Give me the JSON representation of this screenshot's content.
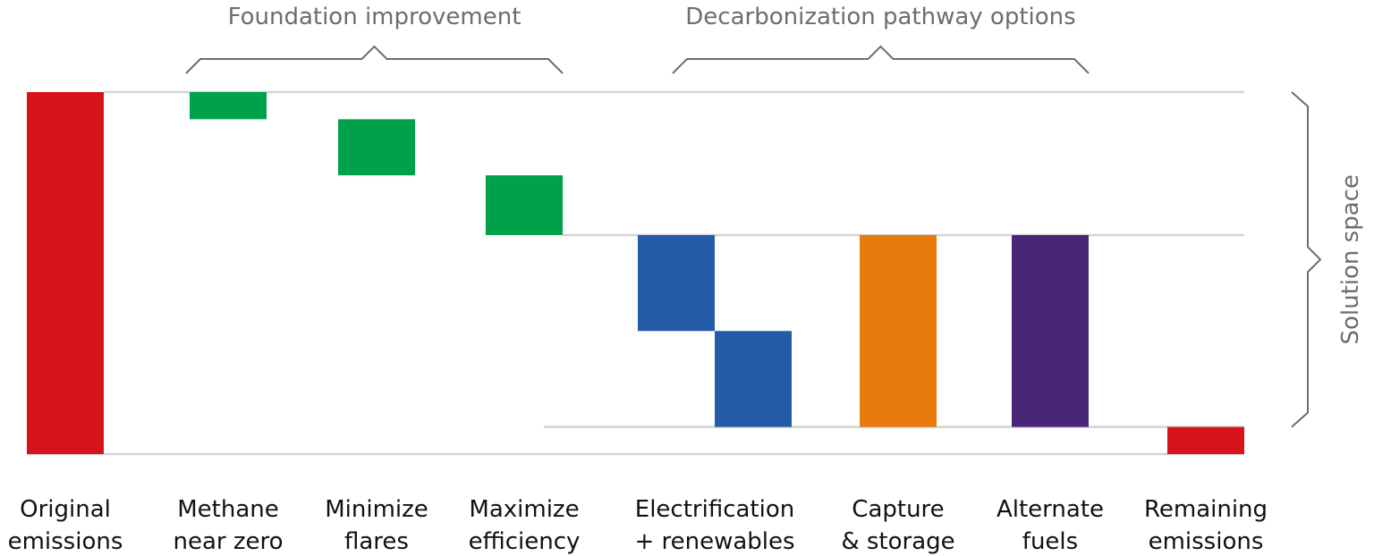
{
  "chart_data": {
    "type": "bar",
    "subtype": "waterfall",
    "grid": "horizontal reference lines",
    "categories": [
      [
        "Original",
        "emissions"
      ],
      [
        "Methane",
        "near zero"
      ],
      [
        "Minimize",
        "flares"
      ],
      [
        "Maximize",
        "efficiency"
      ],
      [
        "Electrification",
        "+ renewables"
      ],
      [
        "Capture",
        "& storage"
      ],
      [
        "Alternate",
        "fuels"
      ],
      [
        "Remaining",
        "emissions"
      ]
    ],
    "ylim": [
      0,
      100
    ],
    "bars": [
      {
        "name": "Original emissions",
        "base": 0,
        "top": 100,
        "color": "#d7141c"
      },
      {
        "name": "Methane near zero",
        "base": 92.5,
        "top": 100,
        "color": "#00a14b"
      },
      {
        "name": "Minimize flares",
        "base": 77,
        "top": 92.5,
        "color": "#00a14b"
      },
      {
        "name": "Maximize efficiency",
        "base": 60.5,
        "top": 77,
        "color": "#00a14b"
      },
      {
        "name": "Electrification part 1",
        "base": 34,
        "top": 60.5,
        "color": "#235ba6"
      },
      {
        "name": "Electrification part 2",
        "base": 7.5,
        "top": 34,
        "color": "#235ba6"
      },
      {
        "name": "Capture & storage",
        "base": 7.5,
        "top": 60.5,
        "color": "#e87b0c"
      },
      {
        "name": "Alternate fuels",
        "base": 7.5,
        "top": 60.5,
        "color": "#4a2679"
      },
      {
        "name": "Remaining emissions",
        "base": 0,
        "top": 7.5,
        "color": "#d7141c"
      }
    ],
    "reference_levels": [
      100,
      60.5,
      7.5
    ],
    "groups": [
      {
        "label": "Foundation improvement",
        "from": 1,
        "to": 3
      },
      {
        "label": "Decarbonization pathway options",
        "from": 4,
        "to": 6
      }
    ],
    "side_label": "Solution space"
  }
}
